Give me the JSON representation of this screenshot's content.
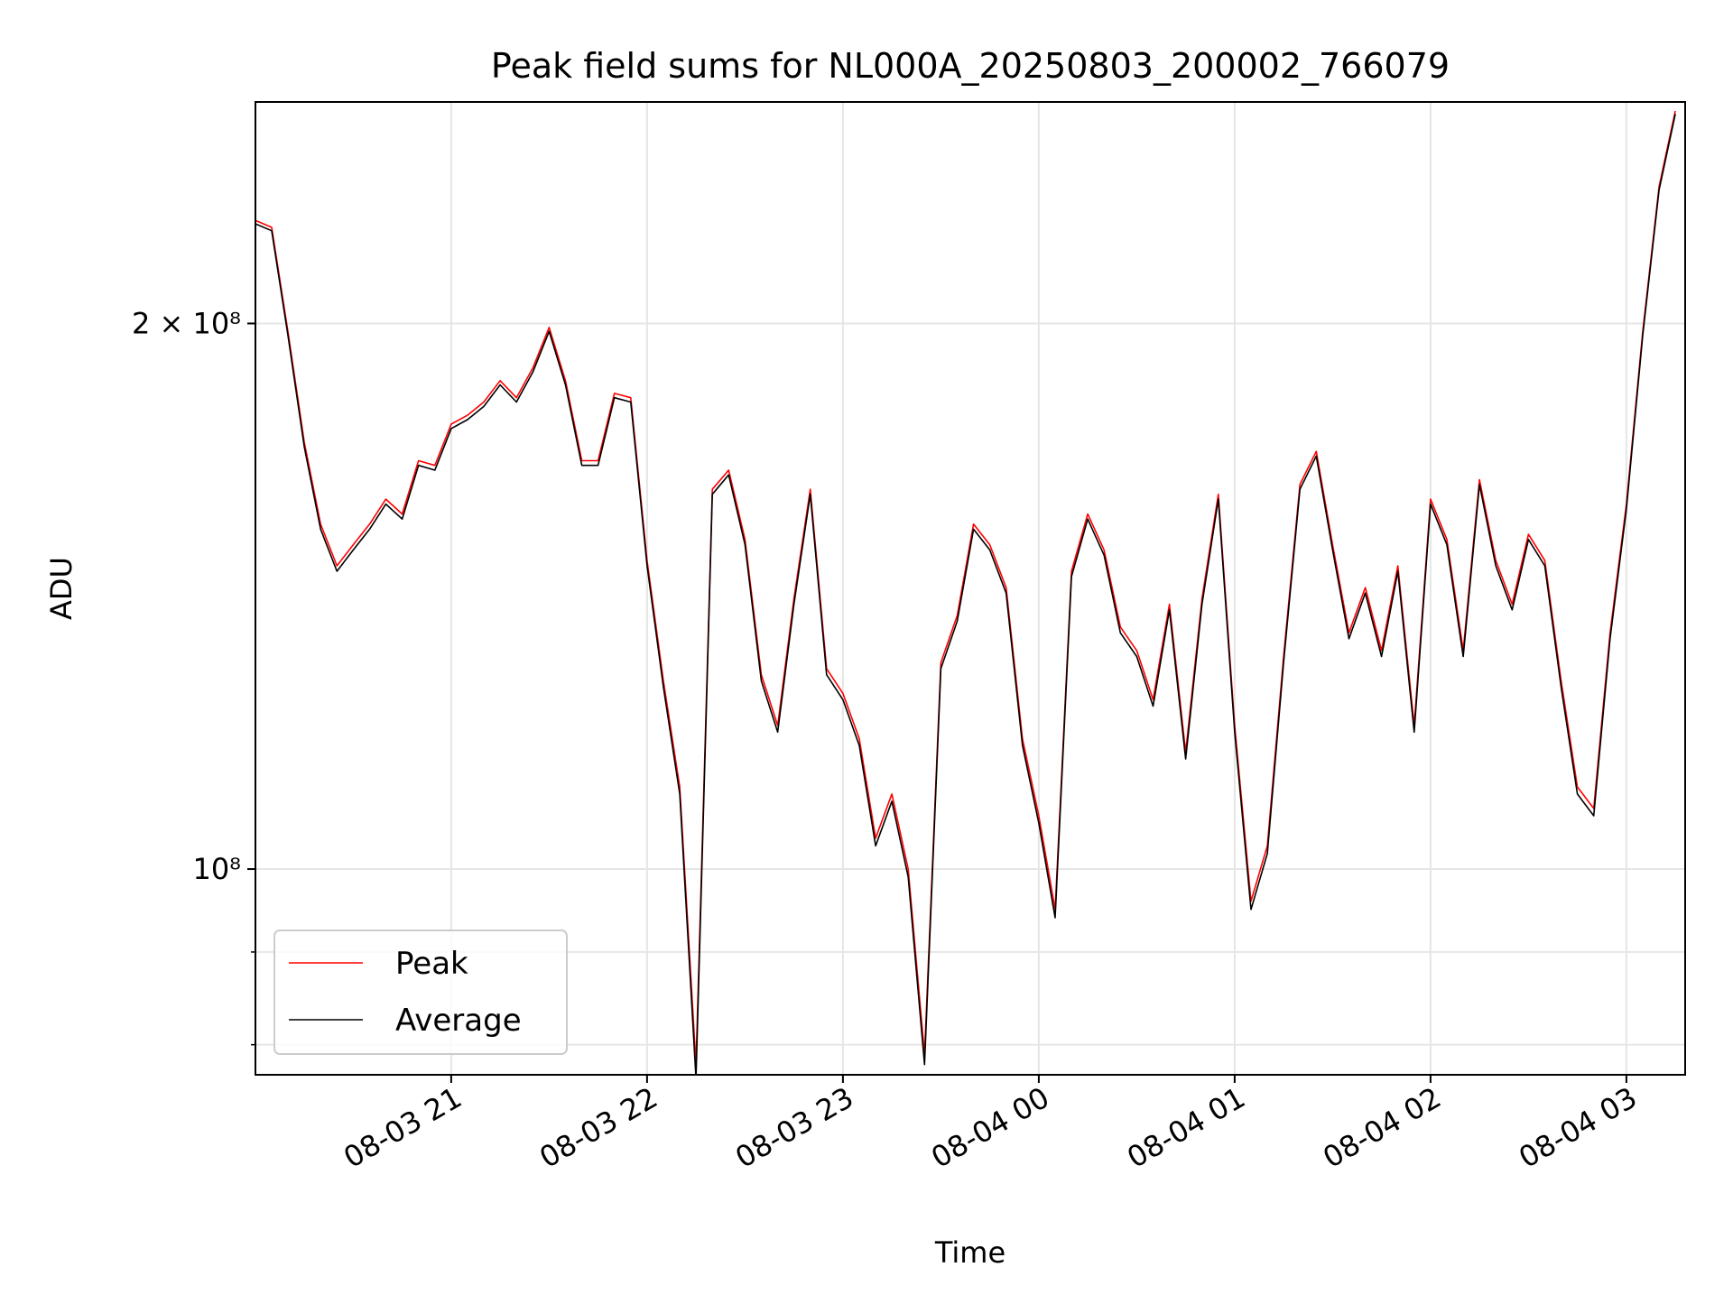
{
  "chart_data": {
    "type": "line",
    "title": "Peak field sums for NL000A_20250803_200002_766079",
    "xlabel": "Time",
    "ylabel": "ADU",
    "yscale": "log",
    "ylim": [
      77000000,
      265000000
    ],
    "xlim": [
      "2025-08-03 20:00:02",
      "2025-08-04 03:18:00"
    ],
    "grid": true,
    "legend_position": "lower-left",
    "x_ticks": [
      {
        "x": "2025-08-03 21:00",
        "label": "08-03 21"
      },
      {
        "x": "2025-08-03 22:00",
        "label": "08-03 22"
      },
      {
        "x": "2025-08-03 23:00",
        "label": "08-03 23"
      },
      {
        "x": "2025-08-04 00:00",
        "label": "08-04 00"
      },
      {
        "x": "2025-08-04 01:00",
        "label": "08-04 01"
      },
      {
        "x": "2025-08-04 02:00",
        "label": "08-04 02"
      },
      {
        "x": "2025-08-04 03:00",
        "label": "08-04 03"
      }
    ],
    "y_ticks": [
      {
        "y": 200000000,
        "label": "2 × 10⁸"
      },
      {
        "y": 100000000,
        "label": "10⁸"
      }
    ],
    "series": [
      {
        "name": "Peak",
        "color": "#ff0000",
        "x": [
          "2025-08-03 20:00",
          "2025-08-03 20:05",
          "2025-08-03 20:10",
          "2025-08-03 20:15",
          "2025-08-03 20:20",
          "2025-08-03 20:25",
          "2025-08-03 20:30",
          "2025-08-03 20:35",
          "2025-08-03 20:40",
          "2025-08-03 20:45",
          "2025-08-03 20:50",
          "2025-08-03 20:55",
          "2025-08-03 21:00",
          "2025-08-03 21:05",
          "2025-08-03 21:10",
          "2025-08-03 21:15",
          "2025-08-03 21:20",
          "2025-08-03 21:25",
          "2025-08-03 21:30",
          "2025-08-03 21:35",
          "2025-08-03 21:40",
          "2025-08-03 21:45",
          "2025-08-03 21:50",
          "2025-08-03 21:55",
          "2025-08-03 22:00",
          "2025-08-03 22:05",
          "2025-08-03 22:10",
          "2025-08-03 22:15",
          "2025-08-03 22:20",
          "2025-08-03 22:25",
          "2025-08-03 22:30",
          "2025-08-03 22:35",
          "2025-08-03 22:40",
          "2025-08-03 22:45",
          "2025-08-03 22:50",
          "2025-08-03 22:55",
          "2025-08-03 23:00",
          "2025-08-03 23:05",
          "2025-08-03 23:10",
          "2025-08-03 23:15",
          "2025-08-03 23:20",
          "2025-08-03 23:25",
          "2025-08-03 23:30",
          "2025-08-03 23:35",
          "2025-08-03 23:40",
          "2025-08-03 23:45",
          "2025-08-03 23:50",
          "2025-08-03 23:55",
          "2025-08-04 00:00",
          "2025-08-04 00:05",
          "2025-08-04 00:10",
          "2025-08-04 00:15",
          "2025-08-04 00:20",
          "2025-08-04 00:25",
          "2025-08-04 00:30",
          "2025-08-04 00:35",
          "2025-08-04 00:40",
          "2025-08-04 00:45",
          "2025-08-04 00:50",
          "2025-08-04 00:55",
          "2025-08-04 01:00",
          "2025-08-04 01:05",
          "2025-08-04 01:10",
          "2025-08-04 01:15",
          "2025-08-04 01:20",
          "2025-08-04 01:25",
          "2025-08-04 01:30",
          "2025-08-04 01:35",
          "2025-08-04 01:40",
          "2025-08-04 01:45",
          "2025-08-04 01:50",
          "2025-08-04 01:55",
          "2025-08-04 02:00",
          "2025-08-04 02:05",
          "2025-08-04 02:10",
          "2025-08-04 02:15",
          "2025-08-04 02:20",
          "2025-08-04 02:25",
          "2025-08-04 02:30",
          "2025-08-04 02:35",
          "2025-08-04 02:40",
          "2025-08-04 02:45",
          "2025-08-04 02:50",
          "2025-08-04 02:55",
          "2025-08-04 03:00",
          "2025-08-04 03:05",
          "2025-08-04 03:10",
          "2025-08-04 03:15"
        ],
        "y": [
          228000000,
          226000000,
          198000000,
          172000000,
          155000000,
          147000000,
          151000000,
          155000000,
          160000000,
          157000000,
          168000000,
          167000000,
          176000000,
          178000000,
          181000000,
          186000000,
          182000000,
          189000000,
          199000000,
          186000000,
          168000000,
          168000000,
          183000000,
          182000000,
          148000000,
          127000000,
          111000000,
          78000000,
          162000000,
          166000000,
          152000000,
          128000000,
          120000000,
          141000000,
          162000000,
          129000000,
          125000000,
          118000000,
          104000000,
          110000000,
          100000000,
          79000000,
          130000000,
          138000000,
          155000000,
          151000000,
          143000000,
          118000000,
          107000000,
          95000000,
          146000000,
          157000000,
          150000000,
          136000000,
          132000000,
          124000000,
          140000000,
          116000000,
          141000000,
          161000000,
          120000000,
          96000000,
          103000000,
          131000000,
          163000000,
          170000000,
          151000000,
          135000000,
          143000000,
          132000000,
          147000000,
          120000000,
          160000000,
          152000000,
          132000000,
          164000000,
          148000000,
          140000000,
          153000000,
          148000000,
          127000000,
          111000000,
          108000000,
          135000000,
          159000000,
          198000000,
          238000000,
          262000000
        ]
      },
      {
        "name": "Average",
        "color": "#000000",
        "x": [
          "2025-08-03 20:00",
          "2025-08-03 20:05",
          "2025-08-03 20:10",
          "2025-08-03 20:15",
          "2025-08-03 20:20",
          "2025-08-03 20:25",
          "2025-08-03 20:30",
          "2025-08-03 20:35",
          "2025-08-03 20:40",
          "2025-08-03 20:45",
          "2025-08-03 20:50",
          "2025-08-03 20:55",
          "2025-08-03 21:00",
          "2025-08-03 21:05",
          "2025-08-03 21:10",
          "2025-08-03 21:15",
          "2025-08-03 21:20",
          "2025-08-03 21:25",
          "2025-08-03 21:30",
          "2025-08-03 21:35",
          "2025-08-03 21:40",
          "2025-08-03 21:45",
          "2025-08-03 21:50",
          "2025-08-03 21:55",
          "2025-08-03 22:00",
          "2025-08-03 22:05",
          "2025-08-03 22:10",
          "2025-08-03 22:15",
          "2025-08-03 22:20",
          "2025-08-03 22:25",
          "2025-08-03 22:30",
          "2025-08-03 22:35",
          "2025-08-03 22:40",
          "2025-08-03 22:45",
          "2025-08-03 22:50",
          "2025-08-03 22:55",
          "2025-08-03 23:00",
          "2025-08-03 23:05",
          "2025-08-03 23:10",
          "2025-08-03 23:15",
          "2025-08-03 23:20",
          "2025-08-03 23:25",
          "2025-08-03 23:30",
          "2025-08-03 23:35",
          "2025-08-03 23:40",
          "2025-08-03 23:45",
          "2025-08-03 23:50",
          "2025-08-03 23:55",
          "2025-08-04 00:00",
          "2025-08-04 00:05",
          "2025-08-04 00:10",
          "2025-08-04 00:15",
          "2025-08-04 00:20",
          "2025-08-04 00:25",
          "2025-08-04 00:30",
          "2025-08-04 00:35",
          "2025-08-04 00:40",
          "2025-08-04 00:45",
          "2025-08-04 00:50",
          "2025-08-04 00:55",
          "2025-08-04 01:00",
          "2025-08-04 01:05",
          "2025-08-04 01:10",
          "2025-08-04 01:15",
          "2025-08-04 01:20",
          "2025-08-04 01:25",
          "2025-08-04 01:30",
          "2025-08-04 01:35",
          "2025-08-04 01:40",
          "2025-08-04 01:45",
          "2025-08-04 01:50",
          "2025-08-04 01:55",
          "2025-08-04 02:00",
          "2025-08-04 02:05",
          "2025-08-04 02:10",
          "2025-08-04 02:15",
          "2025-08-04 02:20",
          "2025-08-04 02:25",
          "2025-08-04 02:30",
          "2025-08-04 02:35",
          "2025-08-04 02:40",
          "2025-08-04 02:45",
          "2025-08-04 02:50",
          "2025-08-04 02:55",
          "2025-08-04 03:00",
          "2025-08-04 03:05",
          "2025-08-04 03:10",
          "2025-08-04 03:15"
        ],
        "y": [
          227000000,
          225000000,
          197000000,
          171000000,
          154000000,
          146000000,
          150000000,
          154000000,
          159000000,
          156000000,
          167000000,
          166000000,
          175000000,
          177000000,
          180000000,
          185000000,
          181000000,
          188000000,
          198000000,
          185000000,
          167000000,
          167000000,
          182000000,
          181000000,
          147000000,
          126000000,
          110000000,
          76000000,
          161000000,
          165000000,
          151000000,
          127000000,
          119000000,
          140000000,
          161000000,
          128000000,
          124000000,
          117000000,
          103000000,
          109000000,
          99000000,
          78000000,
          129000000,
          137000000,
          154000000,
          150000000,
          142000000,
          117000000,
          106000000,
          94000000,
          145000000,
          156000000,
          149000000,
          135000000,
          131000000,
          123000000,
          139000000,
          115000000,
          140000000,
          160000000,
          119000000,
          95000000,
          102000000,
          130000000,
          162000000,
          169000000,
          150000000,
          134000000,
          142000000,
          131000000,
          146000000,
          119000000,
          159000000,
          151000000,
          131000000,
          163000000,
          147000000,
          139000000,
          152000000,
          147000000,
          126000000,
          110000000,
          107000000,
          134000000,
          158000000,
          197000000,
          237000000,
          261000000
        ]
      }
    ]
  }
}
